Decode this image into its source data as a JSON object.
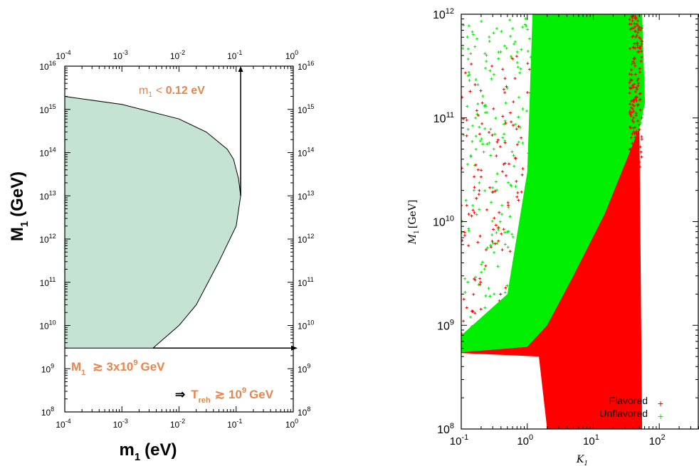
{
  "chart_data": [
    {
      "type": "area",
      "xlabel_var": "m",
      "xlabel_sub": "1",
      "xlabel_rest": "(eV)",
      "ylabel_var": "M",
      "ylabel_sub": "1",
      "ylabel_rest": "(GeV)",
      "xscale": "log",
      "yscale": "log",
      "xlim": [
        0.0001,
        1
      ],
      "ylim": [
        100000000,
        10000000000000000
      ],
      "x_tick_labels": [
        {
          "base": "10",
          "exp": "-4"
        },
        {
          "base": "10",
          "exp": "-3"
        },
        {
          "base": "10",
          "exp": "-2"
        },
        {
          "base": "10",
          "exp": "-1"
        },
        {
          "base": "10",
          "exp": "0"
        }
      ],
      "y_tick_labels": [
        {
          "base": "10",
          "exp": "8"
        },
        {
          "base": "10",
          "exp": "9"
        },
        {
          "base": "10",
          "exp": "10"
        },
        {
          "base": "10",
          "exp": "11"
        },
        {
          "base": "10",
          "exp": "12"
        },
        {
          "base": "10",
          "exp": "13"
        },
        {
          "base": "10",
          "exp": "14"
        },
        {
          "base": "10",
          "exp": "15"
        },
        {
          "base": "10",
          "exp": "16"
        }
      ],
      "region_color": "#C5E3D3",
      "region_boundary": [
        {
          "x": 0.0001,
          "y": 2000000000000000
        },
        {
          "x": 0.001,
          "y": 1300000000000000
        },
        {
          "x": 0.01,
          "y": 600000000000000
        },
        {
          "x": 0.03,
          "y": 300000000000000
        },
        {
          "x": 0.07,
          "y": 120000000000000
        },
        {
          "x": 0.09,
          "y": 70000000000000
        },
        {
          "x": 0.11,
          "y": 25000000000000
        },
        {
          "x": 0.12,
          "y": 10000000000000
        },
        {
          "x": 0.1,
          "y": 2000000000000
        },
        {
          "x": 0.05,
          "y": 300000000000
        },
        {
          "x": 0.02,
          "y": 30000000000
        },
        {
          "x": 0.01,
          "y": 10000000000
        },
        {
          "x": 0.0035,
          "y": 3000000000
        },
        {
          "x": 0.0001,
          "y": 3000000000
        }
      ],
      "vertical_arrow": {
        "x": 0.12,
        "y_from": 10000000000000,
        "y_to": 10000000000000000
      },
      "horizontal_arrow": {
        "y": 3000000000,
        "x_from": 0.0035,
        "x_to": 1
      },
      "annotation_m1_sym": "m",
      "annotation_m1_sub": "1",
      "annotation_m1_op": "< ",
      "annotation_m1_val": "0.12 eV",
      "annotation_M1_sym": "M",
      "annotation_M1_sub": "1",
      "annotation_M1_op": "≳",
      "annotation_M1_val": "3x10",
      "annotation_M1_exp": "9",
      "annotation_M1_unit": "GeV",
      "annotation_T_arrow": "⇒",
      "annotation_T_sym": "T",
      "annotation_T_sub": "reh",
      "annotation_T_op": "≳",
      "annotation_T_val": "10",
      "annotation_T_exp": "9",
      "annotation_T_unit": "GeV",
      "colors": {
        "annotation": "#E9844A",
        "region": "#C5E3D3"
      }
    },
    {
      "type": "scatter",
      "xlabel_var": "K",
      "xlabel_sub": "1",
      "ylabel_var": "M",
      "ylabel_sub": "1",
      "ylabel_unit": "[GeV]",
      "xscale": "log",
      "yscale": "log",
      "xlim": [
        0.1,
        400
      ],
      "ylim": [
        100000000,
        1000000000000
      ],
      "x_tick_labels": [
        {
          "base": "10",
          "exp": "-1"
        },
        {
          "base": "10",
          "exp": "0"
        },
        {
          "base": "10",
          "exp": "1"
        },
        {
          "base": "10",
          "exp": "2"
        }
      ],
      "y_tick_labels": [
        {
          "base": "10",
          "exp": "8"
        },
        {
          "base": "10",
          "exp": "9"
        },
        {
          "base": "10",
          "exp": "10"
        },
        {
          "base": "10",
          "exp": "11"
        },
        {
          "base": "10",
          "exp": "12"
        }
      ],
      "legend_position": "bottom-right",
      "series": [
        {
          "name": "Flavored",
          "color": "#FF0000",
          "region_lower_left_edge": [
            [
              0.1,
              550000000
            ],
            [
              1,
              620000000
            ],
            [
              2,
              1000000000
            ],
            [
              5,
              3000000000
            ],
            [
              15,
              12000000000
            ],
            [
              50,
              80000000000
            ]
          ],
          "bottom_tail_x": [
            2,
            50
          ],
          "bottom_tail_y_min": 100000000,
          "max_K": 55
        },
        {
          "name": "Unflavored",
          "color": "#00EE00",
          "region_lower_edge": [
            [
              0.1,
              550000000
            ],
            [
              1,
              620000000
            ],
            [
              2,
              1000000000
            ],
            [
              5,
              3000000000
            ],
            [
              15,
              12000000000
            ],
            [
              50,
              80000000000
            ]
          ],
          "region_upper_edge": [
            [
              0.1,
              1000000000000
            ],
            [
              55,
              140000000000
            ]
          ],
          "max_K": 55
        }
      ],
      "legend_entries": [
        {
          "label": "Flavored",
          "marker": "+",
          "color": "#FF0000"
        },
        {
          "label": "Unflavored",
          "marker": "+",
          "color": "#00EE00"
        }
      ]
    }
  ]
}
